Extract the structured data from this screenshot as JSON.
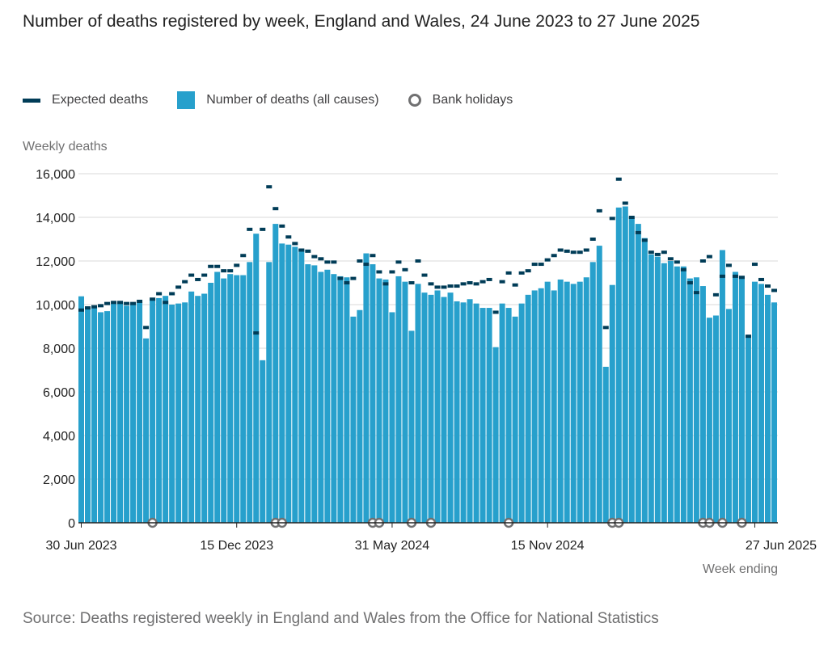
{
  "title": "Number of deaths registered by week, England and Wales, 24 June 2023 to 27 June 2025",
  "source": "Source: Deaths registered weekly in England and Wales from the Office for National Statistics",
  "legend": {
    "expected": "Expected deaths",
    "deaths": "Number of deaths (all causes)",
    "holidays": "Bank holidays"
  },
  "colors": {
    "bars": "#27a0cc",
    "expected": "#003c57",
    "holiday": "#707071",
    "grid": "#d9d9d9"
  },
  "chart_data": {
    "type": "bar",
    "ylabel": "Weekly deaths",
    "xlabel": "Week ending",
    "ylim": [
      0,
      16000
    ],
    "yticks": [
      0,
      2000,
      4000,
      6000,
      8000,
      10000,
      12000,
      14000,
      16000
    ],
    "ytick_labels": [
      "0",
      "2,000",
      "4,000",
      "6,000",
      "8,000",
      "10,000",
      "12,000",
      "14,000",
      "16,000"
    ],
    "xtick_labels": [
      {
        "index": 0,
        "label": "30 Jun 2023"
      },
      {
        "index": 24,
        "label": "15 Dec 2023"
      },
      {
        "index": 48,
        "label": "31 May 2024"
      },
      {
        "index": 72,
        "label": "15 Nov 2024"
      },
      {
        "index": 104,
        "label": "27 Jun 2025"
      }
    ],
    "series": [
      {
        "name": "Number of deaths (all causes)",
        "values": [
          10380,
          9850,
          9880,
          9650,
          9700,
          10050,
          10100,
          9950,
          10050,
          10120,
          8450,
          10250,
          10300,
          10400,
          10000,
          10050,
          10100,
          10600,
          10400,
          10500,
          11000,
          11500,
          11200,
          11400,
          11350,
          11350,
          11950,
          13250,
          7450,
          11950,
          13700,
          12800,
          12750,
          12650,
          12550,
          11850,
          11800,
          11500,
          11600,
          11400,
          11300,
          11250,
          9450,
          9750,
          12350,
          11850,
          11200,
          11150,
          9650,
          11300,
          11050,
          8800,
          10950,
          10550,
          10450,
          10650,
          10350,
          10550,
          10150,
          10100,
          10250,
          10050,
          9850,
          9850,
          8050,
          10050,
          9850,
          9450,
          10050,
          10450,
          10650,
          10750,
          11050,
          10650,
          11150,
          11050,
          10950,
          11050,
          11250,
          11950,
          12700,
          7150,
          10900,
          14450,
          14500,
          14000,
          13700,
          13050,
          12300,
          12200,
          11900,
          12000,
          11750,
          11750,
          11200,
          11250,
          10850,
          9400,
          9500,
          12500,
          9800,
          11500,
          11300,
          8600,
          11050,
          10950,
          10450,
          10100
        ]
      },
      {
        "name": "Expected deaths",
        "values": [
          9750,
          9850,
          9900,
          9950,
          10050,
          10100,
          10100,
          10050,
          10050,
          10150,
          8950,
          10250,
          10500,
          10100,
          10500,
          10800,
          11050,
          11350,
          11150,
          11350,
          11750,
          11750,
          11550,
          11550,
          11800,
          12250,
          13450,
          8700,
          13450,
          15400,
          14400,
          13600,
          13100,
          12800,
          12500,
          12450,
          12200,
          12100,
          11950,
          11950,
          11200,
          11000,
          11200,
          12000,
          11850,
          12250,
          11500,
          10950,
          11500,
          11950,
          11600,
          11000,
          12000,
          11350,
          10950,
          10800,
          10800,
          10850,
          10850,
          10950,
          11000,
          10950,
          11050,
          11150,
          9650,
          11050,
          11450,
          10900,
          11450,
          11550,
          11850,
          11850,
          12050,
          12250,
          12500,
          12450,
          12400,
          12400,
          12500,
          13000,
          14300,
          8950,
          13950,
          15750,
          14650,
          14000,
          13300,
          12950,
          12400,
          12300,
          12400,
          12100,
          11950,
          11600,
          11000,
          10550,
          12000,
          12200,
          10450,
          11300,
          11800,
          11300,
          11250,
          8550,
          11850,
          11150,
          10850,
          10650
        ]
      }
    ],
    "bank_holiday_weeks": [
      11,
      30,
      31,
      45,
      46,
      51,
      54,
      66,
      82,
      83,
      96,
      97,
      99,
      102
    ]
  }
}
